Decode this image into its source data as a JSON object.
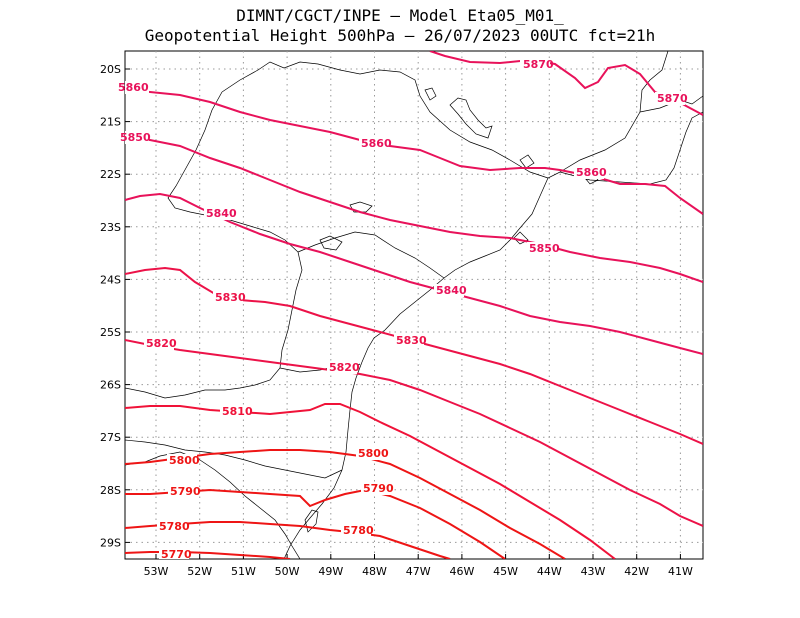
{
  "title": {
    "line1": "DIMNT/CGCT/INPE —  Model Eta05_M01_",
    "line2": "Geopotential Height 500hPa —  26/07/2023 00UTC fct=21h"
  },
  "axes": {
    "lat_labels": [
      "20S",
      "21S",
      "22S",
      "23S",
      "24S",
      "25S",
      "26S",
      "27S",
      "28S",
      "29S"
    ],
    "lon_labels": [
      "53W",
      "52W",
      "51W",
      "50W",
      "49W",
      "48W",
      "47W",
      "46W",
      "45W",
      "44W",
      "43W",
      "42W",
      "41W"
    ]
  },
  "colors": {
    "high": "#e8125a",
    "mid": "#f01238",
    "low": "#ee1515",
    "coast": "#000000",
    "grid": "#9a9a9a"
  },
  "contours": [
    {
      "value": 5870,
      "label": "5870",
      "color": "#e8125a"
    },
    {
      "value": 5860,
      "label": "5860",
      "color": "#e8125a"
    },
    {
      "value": 5850,
      "label": "5850",
      "color": "#e8125a"
    },
    {
      "value": 5840,
      "label": "5840",
      "color": "#e8125a"
    },
    {
      "value": 5830,
      "label": "5830",
      "color": "#ec1248"
    },
    {
      "value": 5820,
      "label": "5820",
      "color": "#ec1248"
    },
    {
      "value": 5810,
      "label": "5810",
      "color": "#f01238"
    },
    {
      "value": 5800,
      "label": "5800",
      "color": "#ee1515"
    },
    {
      "value": 5790,
      "label": "5790",
      "color": "#ee1515"
    },
    {
      "value": 5780,
      "label": "5780",
      "color": "#ee1515"
    },
    {
      "value": 5770,
      "label": "5770",
      "color": "#ee1515"
    }
  ]
}
